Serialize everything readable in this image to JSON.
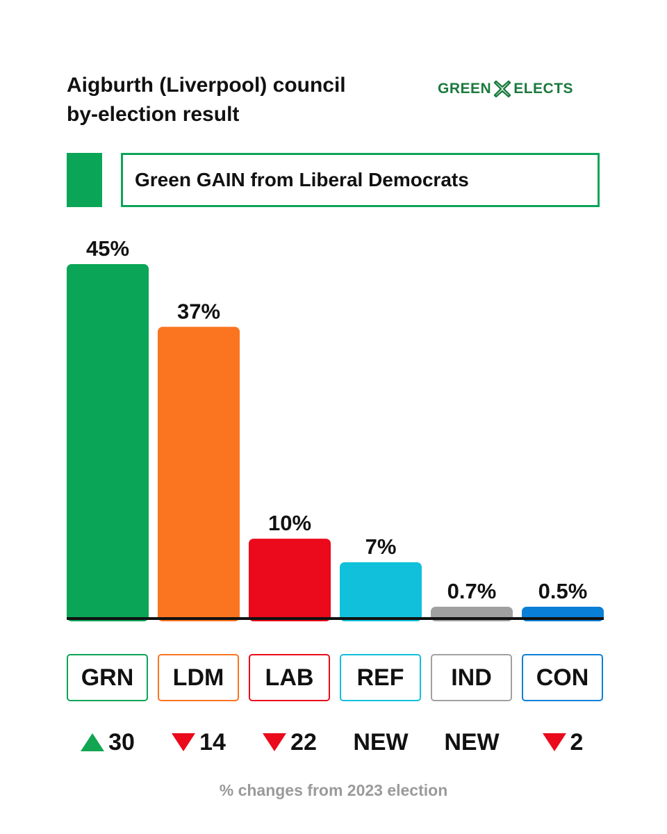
{
  "title": {
    "line1": "Aigburth (Liverpool) council",
    "line2": "by-election result"
  },
  "logo": {
    "left_text": "GREEN",
    "right_text": "ELECTS",
    "icon": "cross-x-icon",
    "color": "#1b7a3e"
  },
  "banner": {
    "text": "Green GAIN from Liberal Democrats",
    "color": "#0aa556"
  },
  "chart_data": {
    "type": "bar",
    "categories": [
      "GRN",
      "LDM",
      "LAB",
      "REF",
      "IND",
      "CON"
    ],
    "values": [
      45,
      37,
      10,
      7,
      0.7,
      0.5
    ],
    "value_labels": [
      "45%",
      "37%",
      "10%",
      "7%",
      "0.7%",
      "0.5%"
    ],
    "colors": [
      "#0aa556",
      "#fb7420",
      "#ea0a1b",
      "#11c0da",
      "#a0a0a0",
      "#0a7fd6"
    ],
    "ylim": [
      0,
      45
    ],
    "title": "",
    "xlabel": "",
    "ylabel": "",
    "grid": false
  },
  "changes": [
    {
      "party": "GRN",
      "direction": "up",
      "text": "30"
    },
    {
      "party": "LDM",
      "direction": "down",
      "text": "14"
    },
    {
      "party": "LAB",
      "direction": "down",
      "text": "22"
    },
    {
      "party": "REF",
      "direction": "none",
      "text": "NEW"
    },
    {
      "party": "IND",
      "direction": "none",
      "text": "NEW"
    },
    {
      "party": "CON",
      "direction": "down",
      "text": "2"
    }
  ],
  "arrow_colors": {
    "up": "#12a552",
    "down": "#ea0a1b"
  },
  "footnote": "% changes from 2023 election"
}
